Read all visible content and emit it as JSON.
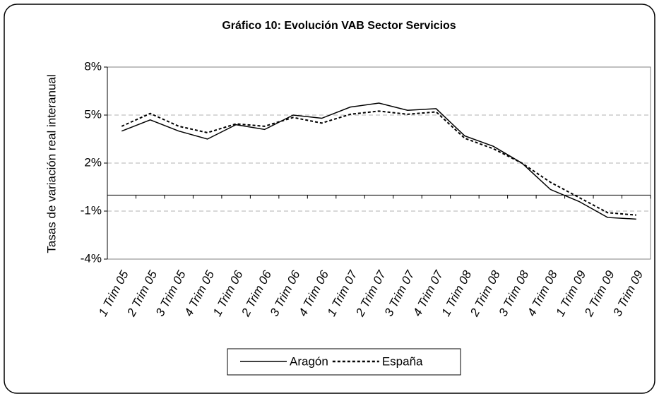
{
  "chart_data": {
    "type": "line",
    "title": "Gráfico 10: Evolución VAB Sector Servicios",
    "y_label": "Tasas de variación real interanual",
    "categories": [
      "1 Trim 05",
      "2 Trim 05",
      "3 Trim 05",
      "4 Trim 05",
      "1 Trim 06",
      "2 Trim 06",
      "3 Trim 06",
      "4 Trim 06",
      "1 Trim 07",
      "2 Trim 07",
      "3 Trim 07",
      "4 Trim 07",
      "1 Trim 08",
      "2 Trim 08",
      "3 Trim 08",
      "4 Trim 08",
      "1 Trim 09",
      "2 Trim 09",
      "3 Trim 09"
    ],
    "series": [
      {
        "name": "Aragón",
        "color": "#000000",
        "dash": "solid",
        "values": [
          4.0,
          4.7,
          4.0,
          3.5,
          4.4,
          4.1,
          5.0,
          4.8,
          5.5,
          5.75,
          5.3,
          5.4,
          3.7,
          3.05,
          2.0,
          0.35,
          -0.4,
          -1.4,
          -1.5
        ]
      },
      {
        "name": "España",
        "color": "#000000",
        "dash": "dotted",
        "values": [
          4.3,
          5.1,
          4.3,
          3.9,
          4.45,
          4.3,
          4.85,
          4.5,
          5.05,
          5.25,
          5.05,
          5.2,
          3.55,
          2.9,
          2.0,
          0.8,
          -0.15,
          -1.1,
          -1.25
        ]
      }
    ],
    "ylim": [
      -4,
      8
    ],
    "yticks": [
      {
        "value": 8,
        "label": "8%"
      },
      {
        "value": 5,
        "label": "5%"
      },
      {
        "value": 2,
        "label": "2%"
      },
      {
        "value": -1,
        "label": "-1%"
      },
      {
        "value": -4,
        "label": "-4%"
      }
    ],
    "grid": true,
    "legend": "bottom"
  }
}
